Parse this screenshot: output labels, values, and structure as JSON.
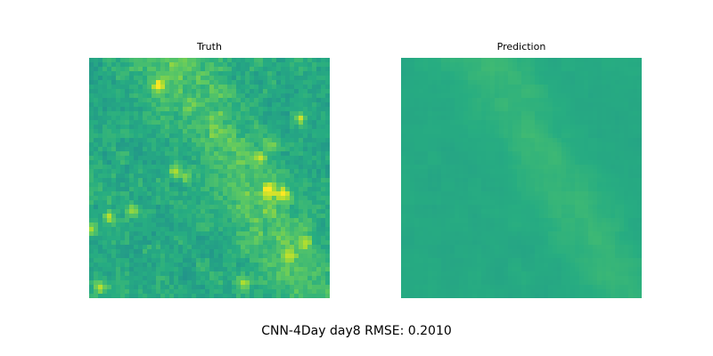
{
  "chart_data": {
    "type": "heatmap",
    "caption": "CNN-4Day day8 RMSE: 0.2010",
    "colormap": "viridis",
    "grid": false,
    "panels": [
      {
        "title": "Truth",
        "description": "noisy field with bright yellow-green patches, mostly along a diagonal band toward the right"
      },
      {
        "title": "Prediction",
        "description": "smoothed field, mostly uniform teal-green with a faint lighter diagonal band"
      }
    ]
  }
}
